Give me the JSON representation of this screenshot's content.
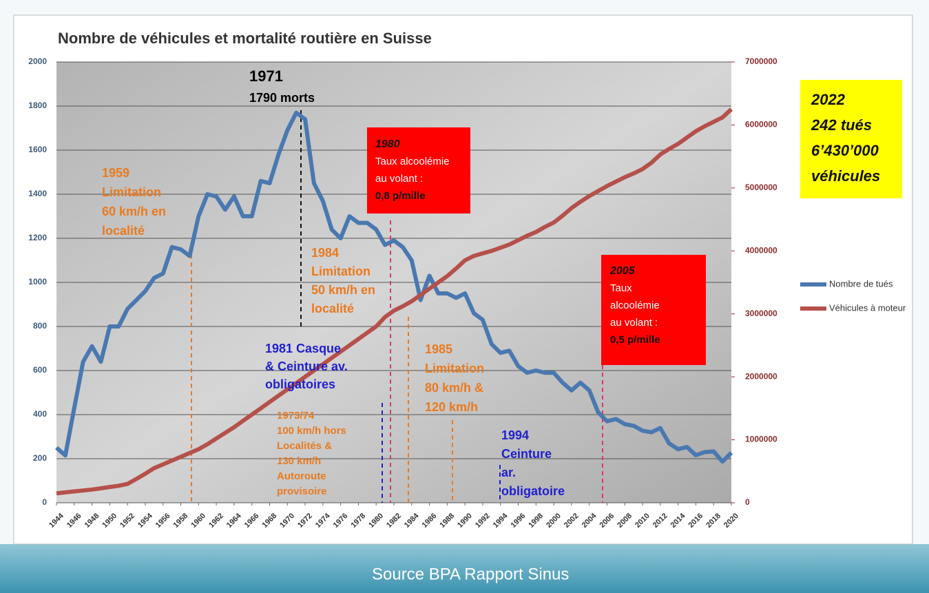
{
  "chart_data": {
    "type": "line",
    "title": "Nombre de véhicules et mortalité routière en Suisse",
    "caption": "Source BPA  Rapport Sinus",
    "x": [
      1944,
      1945,
      1946,
      1947,
      1948,
      1949,
      1950,
      1951,
      1952,
      1953,
      1954,
      1955,
      1956,
      1957,
      1958,
      1959,
      1960,
      1961,
      1962,
      1963,
      1964,
      1965,
      1966,
      1967,
      1968,
      1969,
      1970,
      1971,
      1972,
      1973,
      1974,
      1975,
      1976,
      1977,
      1978,
      1979,
      1980,
      1981,
      1982,
      1983,
      1984,
      1985,
      1986,
      1987,
      1988,
      1989,
      1990,
      1991,
      1992,
      1993,
      1994,
      1995,
      1996,
      1997,
      1998,
      1999,
      2000,
      2001,
      2002,
      2003,
      2004,
      2005,
      2006,
      2007,
      2008,
      2009,
      2010,
      2011,
      2012,
      2013,
      2014,
      2015,
      2016,
      2017,
      2018,
      2019,
      2020
    ],
    "series": [
      {
        "name": "Nombre de tués",
        "color": "#4a78b0",
        "axis": "y",
        "values": [
          250,
          215,
          430,
          640,
          710,
          640,
          800,
          800,
          880,
          920,
          960,
          1020,
          1040,
          1160,
          1150,
          1120,
          1300,
          1400,
          1390,
          1330,
          1390,
          1300,
          1300,
          1460,
          1450,
          1580,
          1690,
          1770,
          1740,
          1450,
          1370,
          1240,
          1200,
          1300,
          1270,
          1270,
          1240,
          1170,
          1190,
          1160,
          1100,
          920,
          1030,
          950,
          950,
          930,
          950,
          860,
          830,
          720,
          680,
          690,
          620,
          590,
          600,
          590,
          590,
          545,
          510,
          545,
          510,
          410,
          370,
          380,
          357,
          349,
          327,
          320,
          339,
          269,
          243,
          253,
          216,
          230,
          233,
          187,
          227
        ]
      },
      {
        "name": "Véhicules à moteur",
        "color": "#b5504a",
        "axis": "y2",
        "values": [
          150000,
          165000,
          180000,
          195000,
          210000,
          230000,
          250000,
          270000,
          300000,
          380000,
          460000,
          550000,
          610000,
          670000,
          730000,
          790000,
          850000,
          930000,
          1020000,
          1110000,
          1200000,
          1300000,
          1400000,
          1500000,
          1600000,
          1700000,
          1800000,
          1900000,
          2000000,
          2100000,
          2200000,
          2300000,
          2400000,
          2500000,
          2600000,
          2700000,
          2800000,
          2950000,
          3050000,
          3120000,
          3200000,
          3300000,
          3400000,
          3500000,
          3600000,
          3720000,
          3850000,
          3920000,
          3960000,
          4000000,
          4050000,
          4100000,
          4170000,
          4240000,
          4300000,
          4380000,
          4450000,
          4560000,
          4680000,
          4780000,
          4870000,
          4950000,
          5030000,
          5100000,
          5170000,
          5230000,
          5300000,
          5400000,
          5530000,
          5620000,
          5700000,
          5800000,
          5900000,
          5980000,
          6050000,
          6120000,
          6250000
        ]
      }
    ],
    "xlim": [
      1944,
      2020
    ],
    "xticks": [
      1944,
      1946,
      1948,
      1950,
      1952,
      1954,
      1956,
      1958,
      1960,
      1962,
      1964,
      1966,
      1968,
      1970,
      1972,
      1974,
      1976,
      1978,
      1980,
      1982,
      1984,
      1986,
      1988,
      1990,
      1992,
      1994,
      1996,
      1998,
      2000,
      2002,
      2004,
      2006,
      2008,
      2010,
      2012,
      2014,
      2016,
      2018,
      2020
    ],
    "ylim": [
      0,
      2000
    ],
    "yticks": [
      0,
      200,
      400,
      600,
      800,
      1000,
      1200,
      1400,
      1600,
      1800,
      2000
    ],
    "y2lim": [
      0,
      7000000
    ],
    "y2ticks": [
      0,
      1000000,
      2000000,
      3000000,
      4000000,
      5000000,
      6000000,
      7000000
    ],
    "grid": true,
    "legend": "right",
    "annotations": [
      {
        "lines": [
          "1971",
          "1790 morts"
        ]
      },
      {
        "lines": [
          "1959",
          "Limitation",
          "60 km/h en",
          "localité"
        ]
      },
      {
        "lines": [
          "1980",
          "Taux alcoolémie",
          "au volant :",
          "0,8 p/mille"
        ]
      },
      {
        "lines": [
          "1984",
          "Limitation",
          "50 km/h en",
          "localité"
        ]
      },
      {
        "lines": [
          "1981 Casque",
          "& Ceinture av.",
          "obligatoires"
        ]
      },
      {
        "lines": [
          "1985",
          "Limitation",
          "80 km/h &",
          "120 km/h"
        ]
      },
      {
        "lines": [
          "1973/74",
          "100 km/h hors",
          "Localités &",
          "130 km/h",
          "Autoroute",
          "provisoire"
        ]
      },
      {
        "lines": [
          "1994",
          "Ceinture",
          "ar.",
          "obligatoire"
        ]
      },
      {
        "lines": [
          "2005",
          "Taux",
          "alcoolémie",
          "au volant :",
          "0,5 p/mille"
        ]
      },
      {
        "lines": [
          "2022",
          "242 tués",
          "6’430’000",
          "véhicules"
        ]
      }
    ]
  }
}
